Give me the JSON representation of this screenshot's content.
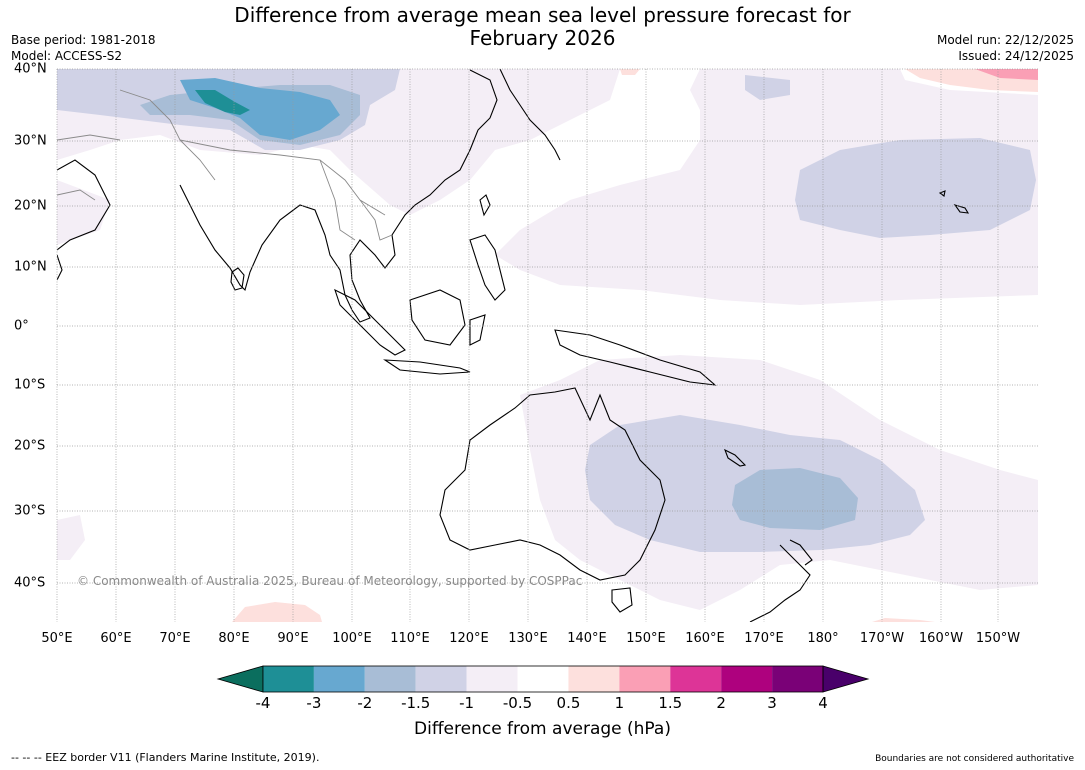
{
  "title": {
    "line1": "Difference from average mean sea level pressure forecast for",
    "line2": "February 2026"
  },
  "meta": {
    "base_period": "Base period: 1981-2018",
    "model": "Model: ACCESS-S2",
    "model_run": "Model run: 22/12/2025",
    "issued": "Issued: 24/12/2025"
  },
  "map": {
    "longitude_labels": [
      "50°E",
      "60°E",
      "70°E",
      "80°E",
      "90°E",
      "100°E",
      "110°E",
      "120°E",
      "130°E",
      "140°E",
      "150°E",
      "160°E",
      "170°E",
      "180°",
      "170°W",
      "160°W",
      "150°W"
    ],
    "latitude_labels": [
      "40°N",
      "30°N",
      "20°N",
      "10°N",
      "0°",
      "10°S",
      "20°S",
      "30°S",
      "40°S"
    ],
    "copyright": "© Commonwealth of Australia 2025, Bureau of Meteorology, supported by COSPPac"
  },
  "colorbar": {
    "label": "Difference from average (hPa)",
    "tick_labels": [
      "-4",
      "-3",
      "-2",
      "-1.5",
      "-1",
      "-0.5",
      "0.5",
      "1",
      "1.5",
      "2",
      "3",
      "4"
    ],
    "colors": [
      "#0b6e5e",
      "#1e8f96",
      "#67a8d0",
      "#a8bdd6",
      "#d0d2e6",
      "#f4eef6",
      "#ffffff",
      "#fde0dd",
      "#fa9fb5",
      "#dd3497",
      "#ae017e",
      "#7a0177",
      "#49006a"
    ]
  },
  "footer": {
    "eez": "--  --  -- EEZ border V11 (Flanders Marine Institute, 2019).",
    "disclaimer": "Boundaries are not considered authoritative"
  }
}
